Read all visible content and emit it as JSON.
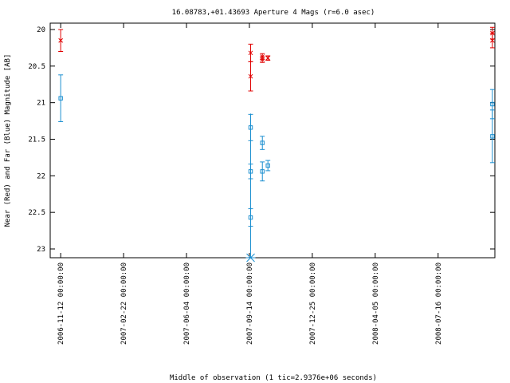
{
  "chart_data": {
    "type": "scatter",
    "title": "16.08783,+01.43693   Aperture 4 Mags (r=6.0 asec)",
    "xlabel": "Middle of observation (1 tic=2.9376e+06 seconds)",
    "ylabel": "Near (Red) and Far (Blue) Magnitude [AB]",
    "x_is_date": true,
    "xlim": [
      "2006-10-26",
      "2008-10-16"
    ],
    "ylim": [
      20,
      23.15
    ],
    "y_inverted": true,
    "x_ticks": [
      "2006-11-12 00:00:00",
      "2007-02-22 00:00:00",
      "2007-06-04 00:00:00",
      "2007-09-14 00:00:00",
      "2007-12-25 00:00:00",
      "2008-04-05 00:00:00",
      "2008-07-16 00:00:00"
    ],
    "y_ticks": [
      "20",
      "20.5",
      "21",
      "21.5",
      "22",
      "22.5",
      "23"
    ],
    "colors": {
      "near": "#e00000",
      "far": "#1c8fd0"
    },
    "series": [
      {
        "key": "near",
        "marker": "x",
        "points": [
          {
            "x": "2006-11-12",
            "y": 20.15,
            "err": 0.15
          },
          {
            "x": "2007-09-16",
            "y": 20.32,
            "err": 0.12
          },
          {
            "x": "2007-09-16",
            "y": 20.64,
            "err": 0.2
          },
          {
            "x": "2007-10-05",
            "y": 20.37,
            "err": 0.04
          },
          {
            "x": "2007-10-05",
            "y": 20.41,
            "err": 0.04
          },
          {
            "x": "2007-10-14",
            "y": 20.39,
            "err": 0.03
          },
          {
            "x": "2008-10-12",
            "y": 20.05,
            "err": 0.08
          },
          {
            "x": "2008-10-12",
            "y": 20.15,
            "err": 0.1
          }
        ]
      },
      {
        "key": "far",
        "marker": "square",
        "points": [
          {
            "x": "2006-11-12",
            "y": 20.94,
            "err": 0.32
          },
          {
            "x": "2007-09-16",
            "y": 21.34,
            "err": 0.18
          },
          {
            "x": "2007-09-16",
            "y": 21.94,
            "err": 0.1
          },
          {
            "x": "2007-09-16",
            "y": 22.57,
            "err": 0.12
          },
          {
            "x": "2007-09-16",
            "y": 23.15,
            "err": 0.0,
            "marker": "asterisk"
          },
          {
            "x": "2007-10-05",
            "y": 21.55,
            "err": 0.09
          },
          {
            "x": "2007-10-05",
            "y": 21.94,
            "err": 0.13
          },
          {
            "x": "2007-10-14",
            "y": 21.86,
            "err": 0.07
          },
          {
            "x": "2008-10-12",
            "y": 21.02,
            "err": 0.2
          },
          {
            "x": "2008-10-12",
            "y": 21.46,
            "err": 0.36
          }
        ]
      }
    ],
    "far_error_span": {
      "x": "2007-09-16",
      "y_low": 21.15,
      "y_high": 23.15
    }
  }
}
